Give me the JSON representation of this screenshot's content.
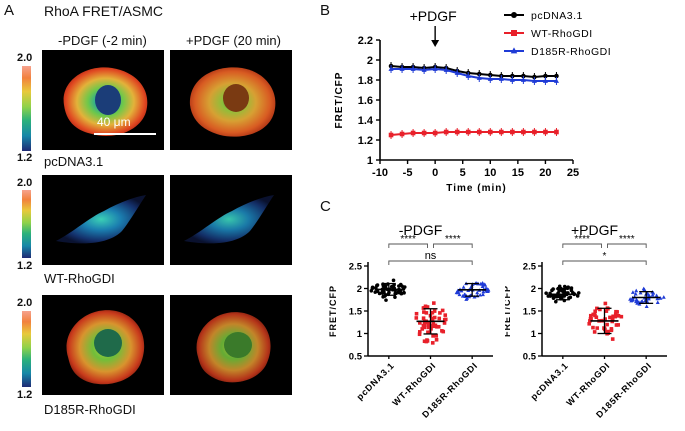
{
  "panel_a": {
    "label": "A",
    "title": "RhoA FRET/ASMC",
    "col_headers": [
      "-PDGF (-2 min)",
      "+PDGF (20 min)"
    ],
    "colorbar": {
      "max": "2.0",
      "min": "1.2"
    },
    "scale_bar": "40 μm",
    "rows": [
      "pcDNA3.1",
      "WT-RhoGDI",
      "D185R-RhoGDI"
    ]
  },
  "panel_b_label": "B",
  "panel_c_label": "C",
  "chart_data": [
    {
      "type": "line",
      "annotation": "+PDGF",
      "xlabel": "Time (min)",
      "ylabel": "FRET/CFP",
      "xlim": [
        -10,
        25
      ],
      "ylim": [
        1.0,
        2.2
      ],
      "xticks": [
        -10,
        -5,
        0,
        5,
        10,
        15,
        20,
        25
      ],
      "yticks": [
        1.0,
        1.2,
        1.4,
        1.6,
        1.8,
        2.0,
        2.2
      ],
      "legend_position": "top-right",
      "x": [
        -8,
        -6,
        -4,
        -2,
        0,
        2,
        4,
        6,
        8,
        10,
        12,
        14,
        16,
        18,
        20,
        22
      ],
      "series": [
        {
          "name": "pcDNA3.1",
          "color": "#000000",
          "marker": "circle",
          "values": [
            1.94,
            1.93,
            1.93,
            1.92,
            1.93,
            1.92,
            1.89,
            1.87,
            1.86,
            1.85,
            1.84,
            1.84,
            1.84,
            1.83,
            1.84,
            1.84
          ]
        },
        {
          "name": "WT-RhoGDI",
          "color": "#e8202a",
          "marker": "square",
          "values": [
            1.25,
            1.26,
            1.27,
            1.27,
            1.27,
            1.28,
            1.28,
            1.28,
            1.28,
            1.28,
            1.28,
            1.28,
            1.28,
            1.28,
            1.28,
            1.28
          ]
        },
        {
          "name": "D185R-RhoGDI",
          "color": "#1f3bd6",
          "marker": "triangle",
          "values": [
            1.91,
            1.91,
            1.91,
            1.9,
            1.91,
            1.9,
            1.87,
            1.84,
            1.82,
            1.81,
            1.81,
            1.8,
            1.8,
            1.79,
            1.79,
            1.79
          ]
        }
      ]
    },
    {
      "type": "scatter",
      "title": "-PDGF",
      "ylabel": "FRET/CFP",
      "ylim": [
        0.5,
        2.5
      ],
      "yticks": [
        0.5,
        1.0,
        1.5,
        2.0,
        2.5
      ],
      "categories": [
        "pcDNA3.1",
        "WT-RhoGDI",
        "D185R-RhoGDI"
      ],
      "colors": [
        "#000000",
        "#e8202a",
        "#1f3bd6"
      ],
      "markers": [
        "circle",
        "square",
        "triangle"
      ],
      "means": [
        1.98,
        1.27,
        1.97
      ],
      "sd": [
        0.13,
        0.28,
        0.14
      ],
      "n": [
        55,
        55,
        50
      ],
      "significance": [
        {
          "from": 0,
          "to": 1,
          "label": "****"
        },
        {
          "from": 1,
          "to": 2,
          "label": "****"
        },
        {
          "from": 0,
          "to": 2,
          "label": "ns"
        }
      ]
    },
    {
      "type": "scatter",
      "title": "+PDGF",
      "ylabel": "FRET/CFP",
      "ylim": [
        0.5,
        2.5
      ],
      "yticks": [
        0.5,
        1.0,
        1.5,
        2.0,
        2.5
      ],
      "categories": [
        "pcDNA3.1",
        "WT-RhoGDI",
        "D185R-RhoGDI"
      ],
      "colors": [
        "#000000",
        "#e8202a",
        "#1f3bd6"
      ],
      "markers": [
        "circle",
        "square",
        "triangle"
      ],
      "means": [
        1.87,
        1.28,
        1.8
      ],
      "sd": [
        0.12,
        0.28,
        0.13
      ],
      "n": [
        48,
        48,
        42
      ],
      "significance": [
        {
          "from": 0,
          "to": 1,
          "label": "****"
        },
        {
          "from": 1,
          "to": 2,
          "label": "****"
        },
        {
          "from": 0,
          "to": 2,
          "label": "*"
        }
      ]
    }
  ]
}
